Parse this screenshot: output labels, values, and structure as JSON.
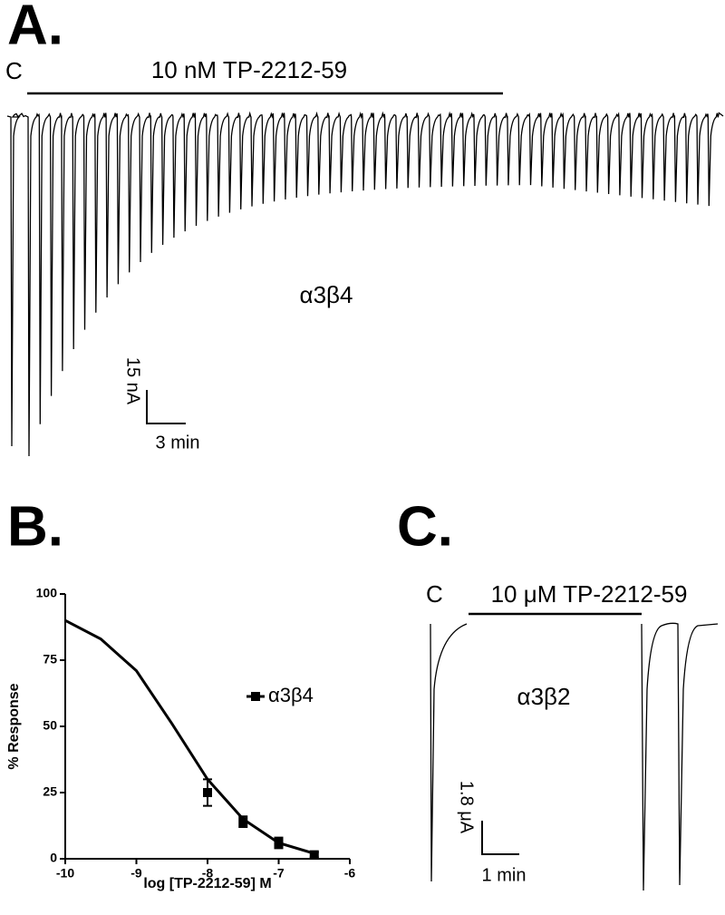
{
  "panels": [
    {
      "label": "A.",
      "control": "C",
      "drug": "10 nM TP-2212-59",
      "receptor": "α3β4",
      "scale_y": "15 nA",
      "scale_x": "3 min"
    },
    {
      "label": "B."
    },
    {
      "label": "C.",
      "control": "C",
      "drug": "10 μM TP-2212-59",
      "receptor": "α3β2",
      "scale_y": "1.8 μA",
      "scale_x": "1 min"
    }
  ],
  "chart_data": {
    "type": "scatter",
    "xlabel": "log [TP-2212-59] M",
    "ylabel": "% Response",
    "xlim": [
      -10,
      -6
    ],
    "ylim": [
      0,
      100
    ],
    "xticks": [
      -10,
      -9,
      -8,
      -7,
      -6
    ],
    "yticks": [
      0,
      25,
      50,
      75,
      100
    ],
    "series": [
      {
        "name": "α3β4",
        "color": "#000000",
        "x": [
          -8,
          -7.5,
          -7,
          -6.5
        ],
        "values": [
          25,
          14,
          6,
          1.5
        ],
        "errors": [
          5,
          2,
          2,
          1
        ]
      }
    ],
    "fit": {
      "x": [
        -10,
        -9.5,
        -9,
        -8.5,
        -8,
        -7.5,
        -7,
        -6.5
      ],
      "values": [
        90,
        83,
        71,
        51,
        30,
        15,
        6,
        2
      ]
    }
  }
}
